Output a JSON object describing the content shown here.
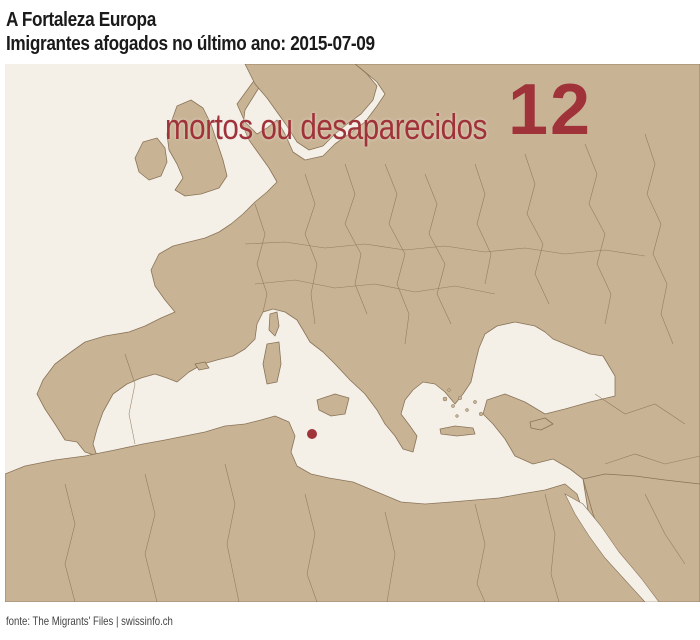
{
  "header": {
    "title": "A Fortaleza Europa",
    "subtitle": "Imigrantes afogados no último ano: 2015-07-09"
  },
  "counter": {
    "label": "mortos ou desaparecidos",
    "value": "12"
  },
  "map": {
    "region": "Europe and Mediterranean",
    "colors": {
      "land": "#c9b395",
      "sea": "#f4f0e8",
      "border": "#8a7458",
      "accent": "#a0323a"
    },
    "incidents": [
      {
        "type": "incident-marker",
        "location": "between Tunisia and Malta"
      }
    ]
  },
  "footer": {
    "source": "fonte: The Migrants' Files | swissinfo.ch"
  }
}
